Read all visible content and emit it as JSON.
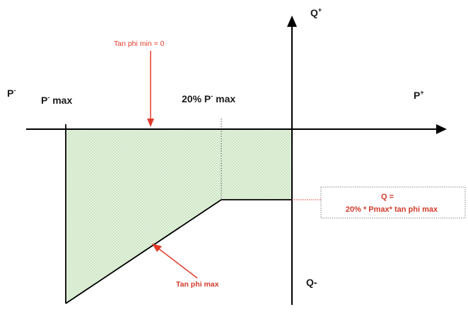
{
  "axes": {
    "p_minus": {
      "base": "P",
      "sup": "-"
    },
    "p_plus": {
      "base": "P",
      "sup": "+"
    },
    "q_plus": {
      "base": "Q",
      "sup": "+"
    },
    "q_minus": "Q-"
  },
  "labels": {
    "p_max": {
      "base": "P",
      "sup": "-",
      "suffix": " max"
    },
    "p20_max": {
      "prefix": "20% P",
      "sup": "-",
      "suffix": " max"
    },
    "tan_phi_min": "Tan phi min = 0",
    "tan_phi_max": "Tan phi max",
    "q_formula_line1": "Q =",
    "q_formula_line2": "20% * Pmax* tan phi max"
  },
  "colors": {
    "region_fill": "#dff0d8",
    "region_hatch": "#b8d8a8",
    "axis": "#000000",
    "annotation_red": "#e03a2a",
    "box_border": "#888888"
  }
}
